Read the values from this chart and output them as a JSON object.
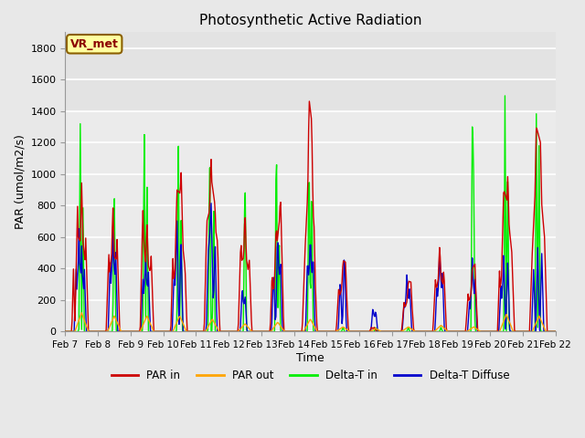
{
  "title": "Photosynthetic Active Radiation",
  "xlabel": "Time",
  "ylabel": "PAR (umol/m2/s)",
  "ylim": [
    0,
    1900
  ],
  "yticks": [
    0,
    200,
    400,
    600,
    800,
    1000,
    1200,
    1400,
    1600,
    1800
  ],
  "annotation_text": "VR_met",
  "annotation_color": "#8B0000",
  "annotation_bg": "#FFFFA0",
  "annotation_border": "#8B6000",
  "bg_color": "#E8E8E8",
  "plot_bg_light": "#FFFFFF",
  "plot_bg_dark": "#E0E0E0",
  "grid_color": "#D0D0D0",
  "colors": {
    "PAR_in": "#CC0000",
    "PAR_out": "#FFA500",
    "Delta_T_in": "#00EE00",
    "Delta_T_Diffuse": "#0000CC"
  },
  "legend_labels": [
    "PAR in",
    "PAR out",
    "Delta-T in",
    "Delta-T Diffuse"
  ],
  "xtick_labels": [
    "Feb 7",
    "Feb 8",
    "Feb 9",
    "Feb 10",
    "Feb 11",
    "Feb 12",
    "Feb 13",
    "Feb 14",
    "Feb 15",
    "Feb 16",
    "Feb 17",
    "Feb 18",
    "Feb 19",
    "Feb 20",
    "Feb 21",
    "Feb 22"
  ],
  "figsize": [
    6.4,
    4.8
  ],
  "dpi": 100
}
